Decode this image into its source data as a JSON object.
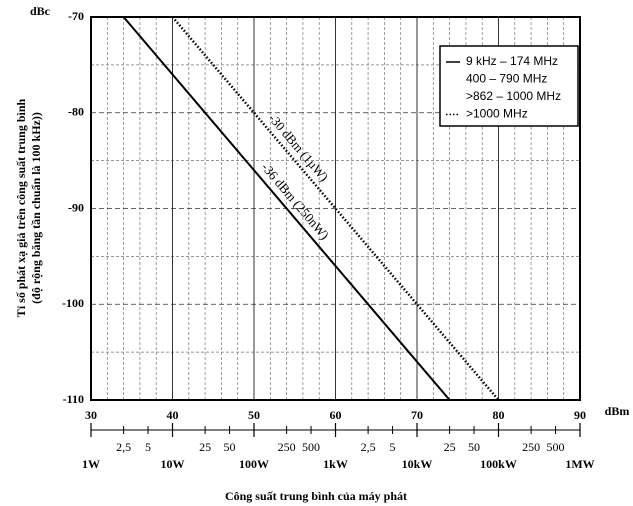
{
  "chart_data": {
    "type": "line",
    "title": "Công suất trung bình của máy phát",
    "x_unit": "dBm",
    "y_unit": "dBc",
    "y_label": [
      "Tỉ số phát xạ giả trên công suất trung bình",
      "(độ rộng băng tần chuẩn là 100 kHz))"
    ],
    "xlim": [
      30,
      90
    ],
    "ylim": [
      -110,
      -70
    ],
    "xticks": [
      30,
      40,
      50,
      60,
      70,
      80,
      90
    ],
    "yticks": [
      -110,
      -100,
      -90,
      -80,
      -70
    ],
    "grid": true,
    "legend_position": "upper right",
    "series": [
      {
        "name": "-36 dBm (250nW)",
        "style": "solid",
        "color": "#000000",
        "x": [
          34,
          74
        ],
        "values": [
          -70,
          -110
        ],
        "legend": [
          "9 kHz – 174 MHz",
          "400 – 790 MHz",
          ">862 – 1000 MHz"
        ]
      },
      {
        "name": "-30 dBm (1µW)",
        "style": "dotted",
        "color": "#000000",
        "x": [
          40,
          80
        ],
        "values": [
          -70,
          -110
        ],
        "legend": [
          ">1000 MHz"
        ]
      }
    ],
    "power_axis": {
      "minor": [
        {
          "value": 34,
          "label": "2,5"
        },
        {
          "value": 37,
          "label": "5"
        },
        {
          "value": 44,
          "label": "25"
        },
        {
          "value": 47,
          "label": "50"
        },
        {
          "value": 54,
          "label": "250"
        },
        {
          "value": 57,
          "label": "500"
        },
        {
          "value": 64,
          "label": "2,5"
        },
        {
          "value": 67,
          "label": "5"
        },
        {
          "value": 74,
          "label": "25"
        },
        {
          "value": 77,
          "label": "50"
        },
        {
          "value": 84,
          "label": "250"
        },
        {
          "value": 87,
          "label": "500"
        }
      ],
      "major": [
        {
          "value": 30,
          "label": "1W"
        },
        {
          "value": 40,
          "label": "10W"
        },
        {
          "value": 50,
          "label": "100W"
        },
        {
          "value": 60,
          "label": "1kW"
        },
        {
          "value": 70,
          "label": "10kW"
        },
        {
          "value": 80,
          "label": "100kW"
        },
        {
          "value": 90,
          "label": "1MW"
        }
      ]
    }
  }
}
